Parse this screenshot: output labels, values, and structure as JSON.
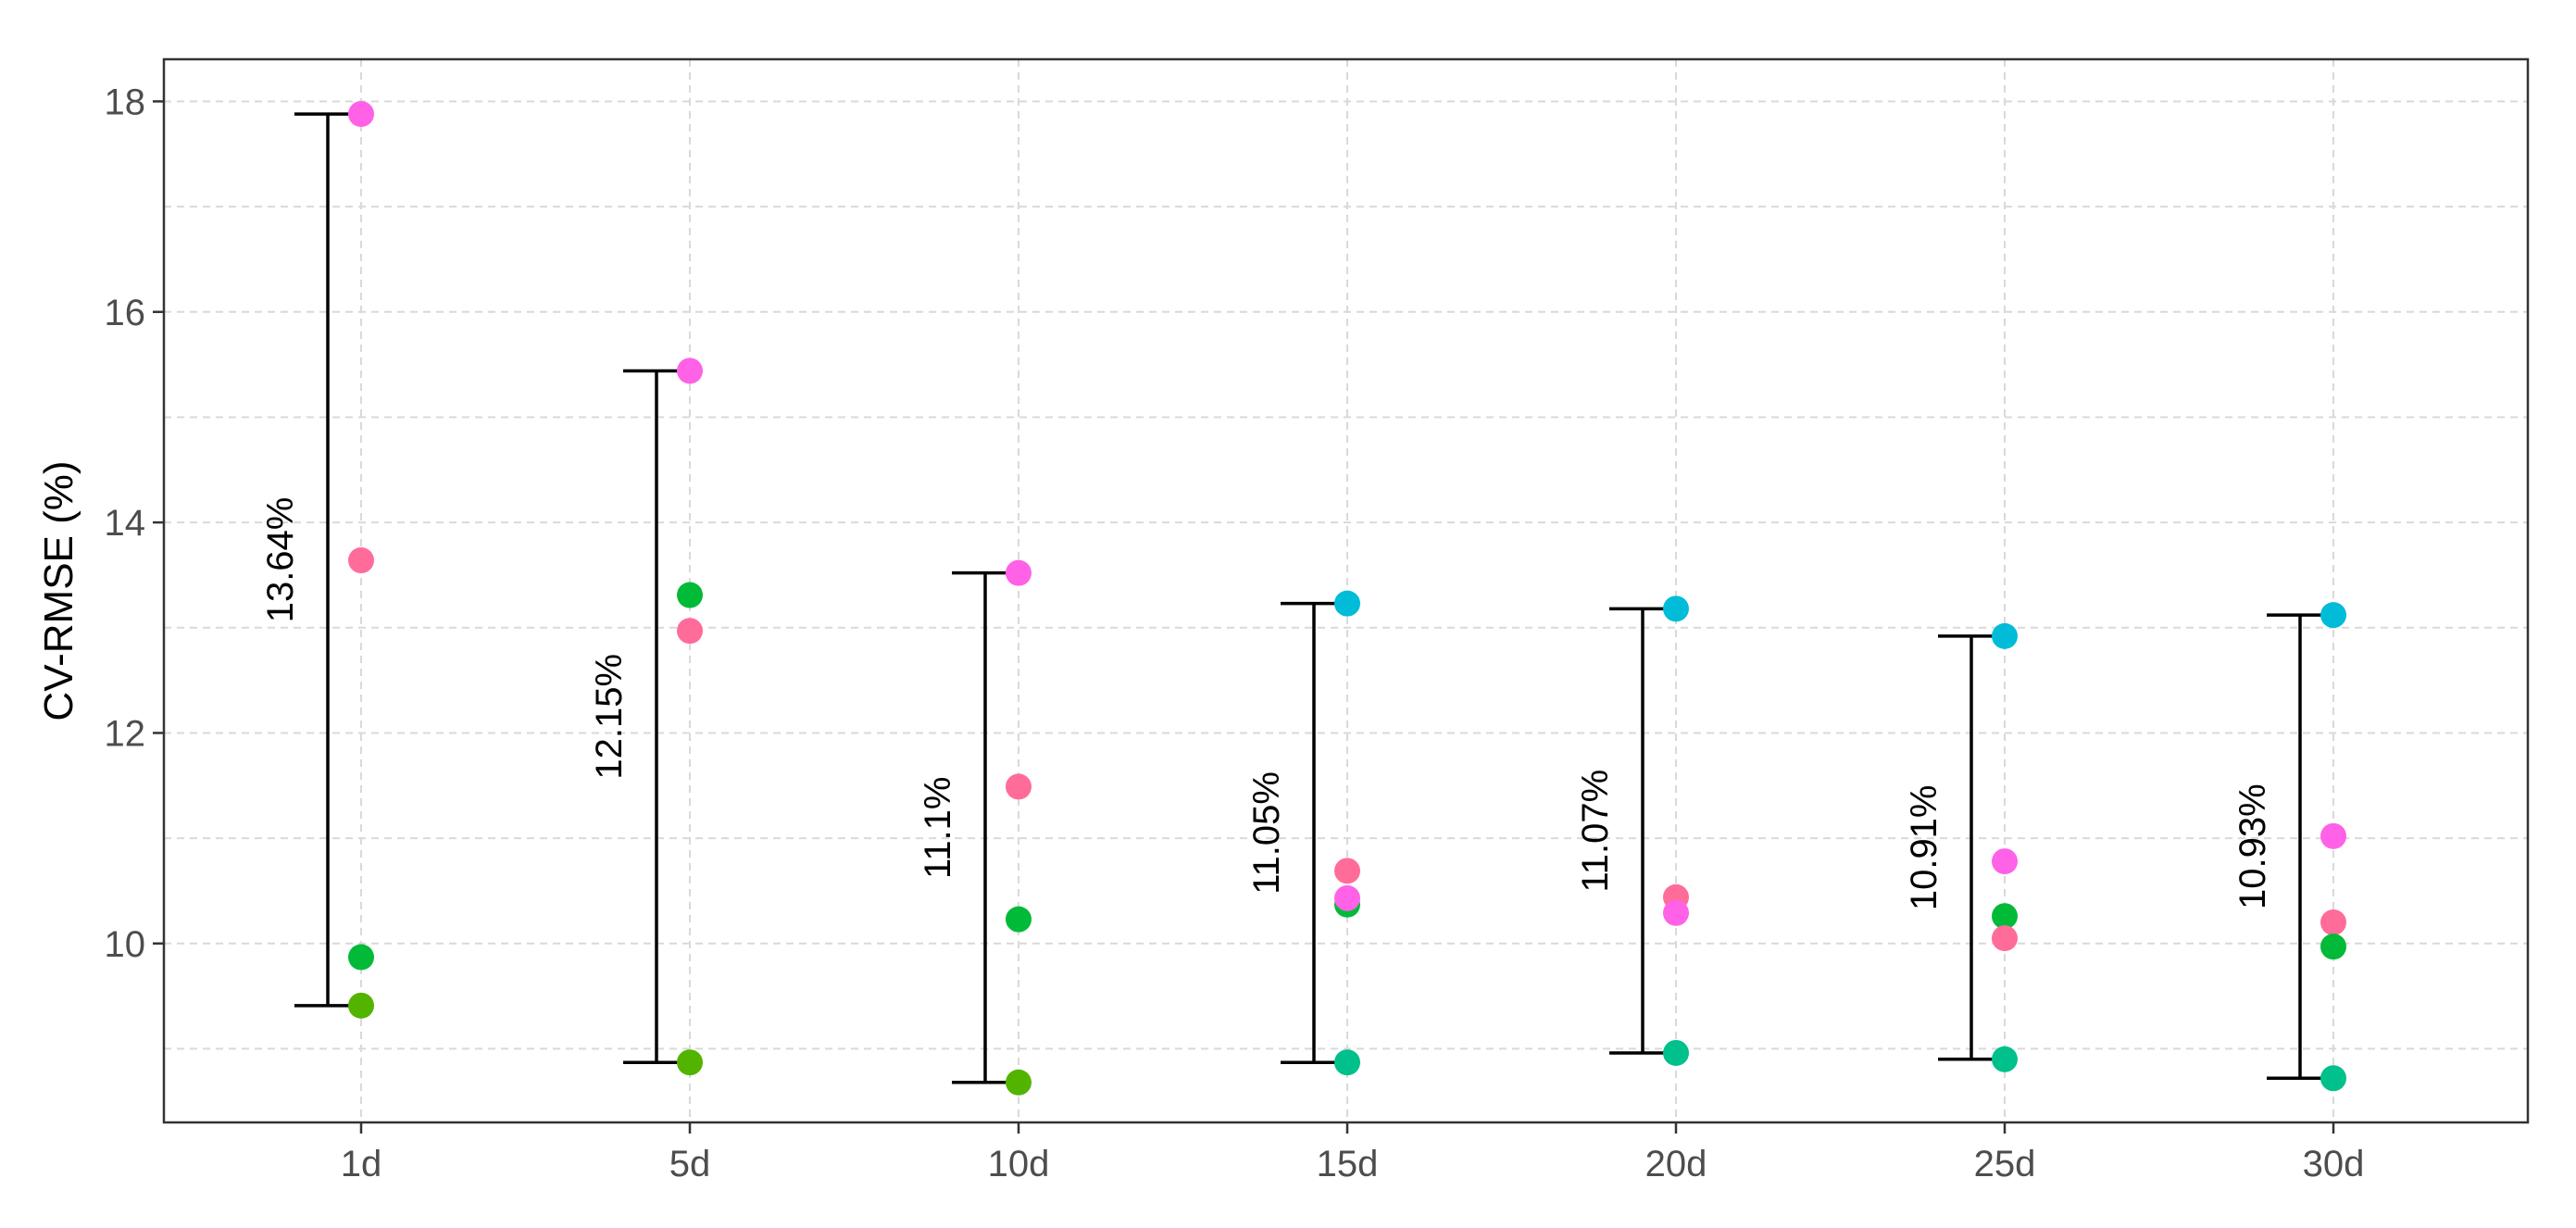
{
  "chart_data": {
    "type": "scatter",
    "title": "",
    "xlabel": "",
    "ylabel": "CV-RMSE (%)",
    "categories": [
      "1d",
      "5d",
      "10d",
      "15d",
      "20d",
      "25d",
      "30d"
    ],
    "ylim": [
      8.3,
      18.4
    ],
    "yticks": [
      10,
      12,
      14,
      16,
      18
    ],
    "grid": true,
    "legend": "none",
    "points": [
      {
        "category": "1d",
        "values": [
          {
            "y": 17.88,
            "color": "#FF61E7"
          },
          {
            "y": 13.64,
            "color": "#FF6C99"
          },
          {
            "y": 9.87,
            "color": "#00BA38"
          },
          {
            "y": 9.41,
            "color": "#53B400"
          }
        ]
      },
      {
        "category": "5d",
        "values": [
          {
            "y": 15.44,
            "color": "#FF61E7"
          },
          {
            "y": 13.31,
            "color": "#00BA38"
          },
          {
            "y": 12.97,
            "color": "#FF6C99"
          },
          {
            "y": 8.87,
            "color": "#53B400"
          }
        ]
      },
      {
        "category": "10d",
        "values": [
          {
            "y": 13.52,
            "color": "#FF61E7"
          },
          {
            "y": 11.49,
            "color": "#FF6C99"
          },
          {
            "y": 10.23,
            "color": "#00BA38"
          },
          {
            "y": 8.68,
            "color": "#53B400"
          }
        ]
      },
      {
        "category": "15d",
        "values": [
          {
            "y": 13.23,
            "color": "#00BCD8"
          },
          {
            "y": 10.69,
            "color": "#FF6C99"
          },
          {
            "y": 10.37,
            "color": "#00BA38"
          },
          {
            "y": 10.43,
            "color": "#FF61E7"
          },
          {
            "y": 8.87,
            "color": "#00C08B"
          }
        ]
      },
      {
        "category": "20d",
        "values": [
          {
            "y": 13.18,
            "color": "#00BCD8"
          },
          {
            "y": 10.44,
            "color": "#FF6C99"
          },
          {
            "y": 10.29,
            "color": "#FF61E7"
          },
          {
            "y": 8.96,
            "color": "#00C08B"
          }
        ]
      },
      {
        "category": "25d",
        "values": [
          {
            "y": 12.92,
            "color": "#00BCD8"
          },
          {
            "y": 10.78,
            "color": "#FF61E7"
          },
          {
            "y": 10.26,
            "color": "#00BA38"
          },
          {
            "y": 10.05,
            "color": "#FF6C99"
          },
          {
            "y": 8.9,
            "color": "#00C08B"
          }
        ]
      },
      {
        "category": "30d",
        "values": [
          {
            "y": 13.12,
            "color": "#00BCD8"
          },
          {
            "y": 11.02,
            "color": "#FF61E7"
          },
          {
            "y": 10.2,
            "color": "#FF6C99"
          },
          {
            "y": 9.97,
            "color": "#00BA38"
          },
          {
            "y": 8.72,
            "color": "#00C08B"
          }
        ]
      }
    ],
    "ranges": [
      {
        "category": "1d",
        "min": 9.41,
        "max": 17.88,
        "label": "13.64%"
      },
      {
        "category": "5d",
        "min": 8.87,
        "max": 15.44,
        "label": "12.15%"
      },
      {
        "category": "10d",
        "min": 8.68,
        "max": 13.52,
        "label": "11.1%"
      },
      {
        "category": "15d",
        "min": 8.87,
        "max": 13.23,
        "label": "11.05%"
      },
      {
        "category": "20d",
        "min": 8.96,
        "max": 13.18,
        "label": "11.07%"
      },
      {
        "category": "25d",
        "min": 8.9,
        "max": 12.92,
        "label": "10.91%"
      },
      {
        "category": "30d",
        "min": 8.72,
        "max": 13.12,
        "label": "10.93%"
      }
    ]
  }
}
